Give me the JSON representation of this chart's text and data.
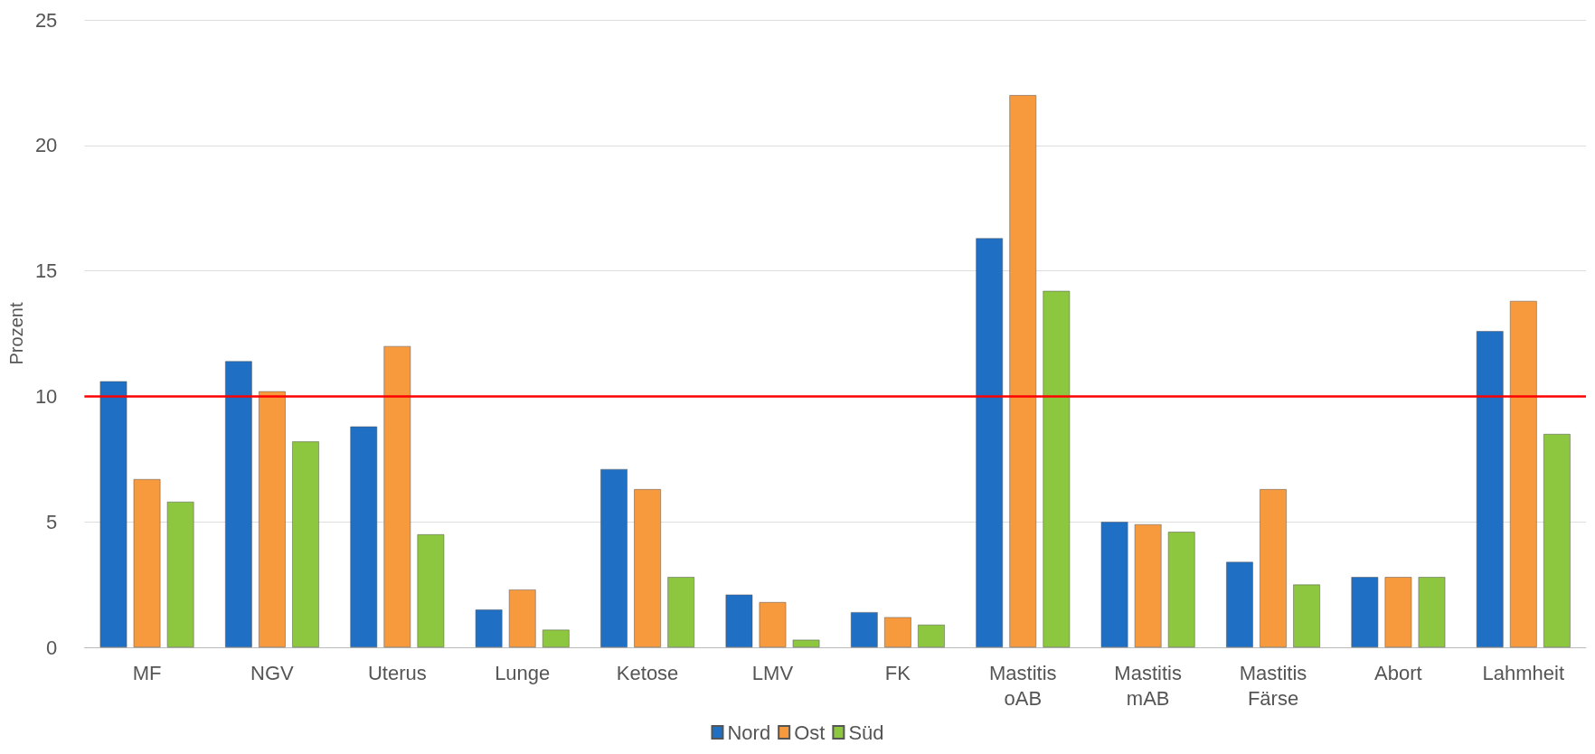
{
  "chart_data": {
    "type": "bar",
    "ylabel": "Prozent",
    "categories": [
      "MF",
      "NGV",
      "Uterus",
      "Lunge",
      "Ketose",
      "LMV",
      "FK",
      "Mastitis\noAB",
      "Mastitis\nmAB",
      "Mastitis\nFärse",
      "Abort",
      "Lahmheit"
    ],
    "series": [
      {
        "name": "Nord",
        "color": "#1f6fc5",
        "values": [
          10.6,
          11.4,
          8.8,
          1.5,
          7.1,
          2.1,
          1.4,
          16.3,
          5.0,
          3.4,
          2.8,
          12.6
        ]
      },
      {
        "name": "Ost",
        "color": "#f79a3e",
        "values": [
          6.7,
          10.2,
          12.0,
          2.3,
          6.3,
          1.8,
          1.2,
          22.0,
          4.9,
          6.3,
          2.8,
          13.8
        ]
      },
      {
        "name": "Süd",
        "color": "#8dc63f",
        "values": [
          5.8,
          8.2,
          4.5,
          0.7,
          2.8,
          0.3,
          0.9,
          14.2,
          4.6,
          2.5,
          2.8,
          8.5
        ]
      }
    ],
    "ylim": [
      0,
      25
    ],
    "yticks": [
      0,
      5,
      10,
      15,
      20,
      25
    ],
    "grid": "y",
    "legend": "bottom",
    "ref_lines": [
      {
        "axis": "y",
        "value": 10,
        "color": "#ff0000"
      }
    ]
  }
}
